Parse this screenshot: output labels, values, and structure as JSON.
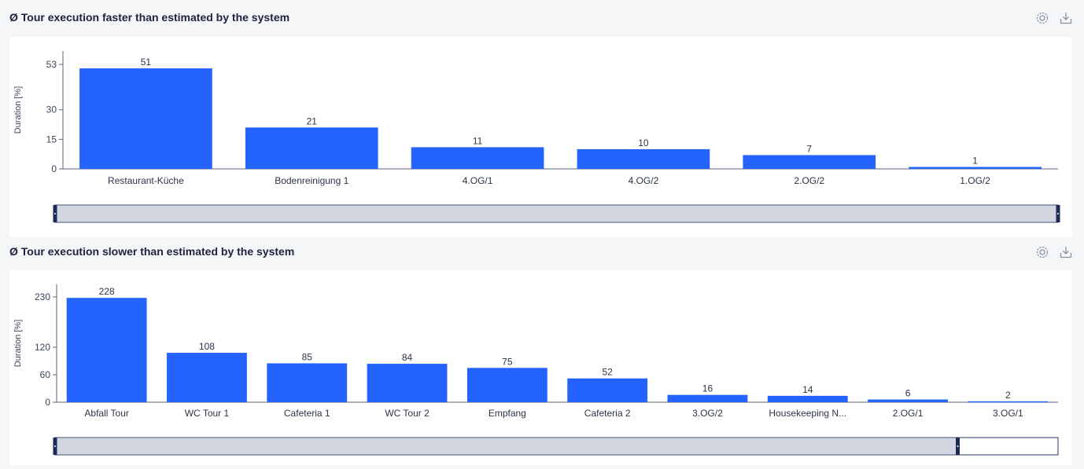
{
  "panels": [
    {
      "title": "Ø Tour execution faster than estimated by the system",
      "icons": [
        "gear-icon",
        "download-icon"
      ],
      "chart_data": {
        "type": "bar",
        "categories": [
          "Restaurant-Küche",
          "Bodenreinigung 1",
          "4.OG/1",
          "4.OG/2",
          "2.OG/2",
          "1.OG/2"
        ],
        "values": [
          51,
          21,
          11,
          10,
          7,
          1
        ],
        "data_labels": [
          "51",
          "21",
          "11",
          "10",
          "7",
          "1"
        ],
        "ylabel": "Duration [%]",
        "yticks": [
          0,
          15,
          30,
          53
        ],
        "ylim": [
          0,
          53
        ],
        "bar_color": "#2563ff",
        "grid": false,
        "slider_range": [
          0,
          1
        ]
      }
    },
    {
      "title": "Ø Tour execution slower than estimated by the system",
      "icons": [
        "gear-icon",
        "download-icon"
      ],
      "chart_data": {
        "type": "bar",
        "categories": [
          "Abfall Tour",
          "WC Tour 1",
          "Cafeteria 1",
          "WC Tour 2",
          "Empfang",
          "Cafeteria 2",
          "3.OG/2",
          "Housekeeping N...",
          "2.OG/1",
          "3.OG/1"
        ],
        "values": [
          228,
          108,
          85,
          84,
          75,
          52,
          16,
          14,
          6,
          2
        ],
        "data_labels": [
          "228",
          "108",
          "85",
          "84",
          "75",
          "52",
          "16",
          "14",
          "6",
          "2"
        ],
        "ylabel": "Duration [%]",
        "yticks": [
          0,
          60,
          120,
          230
        ],
        "ylim": [
          0,
          230
        ],
        "bar_color": "#2563ff",
        "grid": false,
        "slider_range": [
          0,
          0.9
        ]
      }
    }
  ]
}
